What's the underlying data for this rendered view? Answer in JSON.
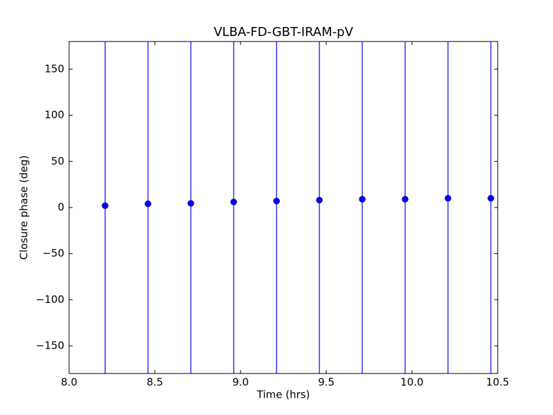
{
  "chart_data": {
    "type": "scatter",
    "title": "VLBA-FD-GBT-IRAM-pV",
    "x_label": "Time (hrs)",
    "y_label": "Closure phase (deg)",
    "xlim": [
      8.0,
      10.5
    ],
    "ylim": [
      -180,
      180
    ],
    "xticks": [
      {
        "value": 8.0,
        "label": "8.0"
      },
      8.5,
      {
        "value": 9.0,
        "label": "9.0"
      },
      9.5,
      {
        "value": 10.0,
        "label": "10.0"
      },
      10.5
    ],
    "yticks": [
      {
        "value": -150,
        "label": "−150"
      },
      {
        "value": -100,
        "label": "−100"
      },
      {
        "value": -50,
        "label": "−50"
      },
      0,
      50,
      100,
      150
    ],
    "series": [
      {
        "color": "#0000ff",
        "x": [
          8.21,
          8.46,
          8.71,
          8.96,
          9.21,
          9.46,
          9.71,
          9.96,
          10.21,
          10.46
        ],
        "values": [
          2,
          4,
          4.5,
          6,
          7,
          8,
          9,
          9,
          10,
          10
        ],
        "errors": [
          200,
          200,
          200,
          200,
          200,
          200,
          200,
          200,
          200,
          200
        ]
      }
    ]
  }
}
